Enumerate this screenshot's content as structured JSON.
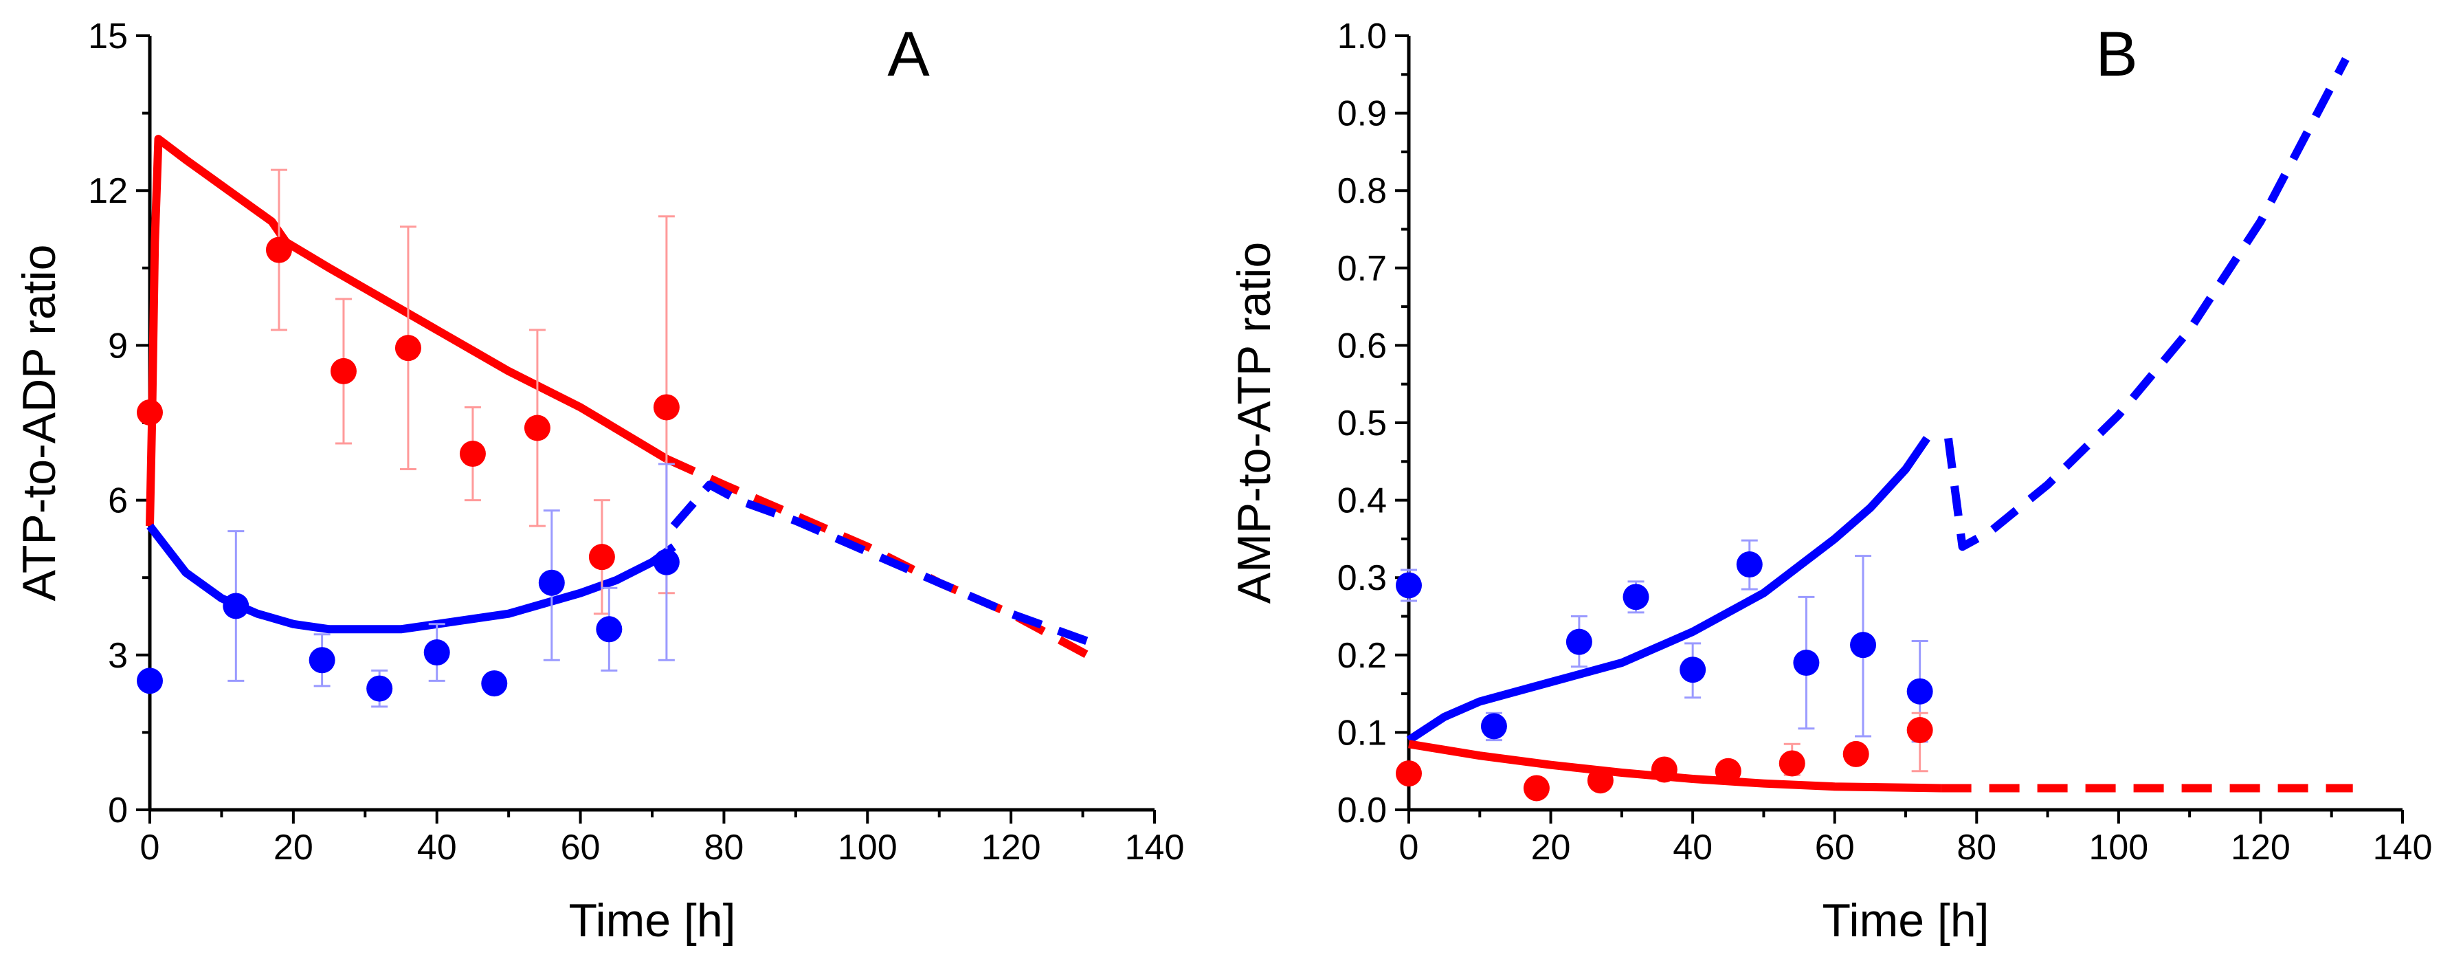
{
  "chart_data": [
    {
      "panel": "A",
      "type": "scatter",
      "title": "A",
      "xlabel": "Time [h]",
      "ylabel": "ATP-to-ADP ratio",
      "xlim": [
        0,
        140
      ],
      "ylim": [
        0,
        15
      ],
      "xticks": [
        0,
        20,
        40,
        60,
        80,
        100,
        120,
        140
      ],
      "yticks": [
        0,
        3,
        6,
        9,
        12,
        15
      ],
      "series": [
        {
          "name": "red data",
          "color": "#ff0000",
          "points": [
            {
              "x": 0,
              "y": 7.7
            },
            {
              "x": 18,
              "y": 10.85,
              "yerr": [
                9.3,
                12.4
              ]
            },
            {
              "x": 27,
              "y": 8.5,
              "yerr": [
                7.1,
                9.9
              ]
            },
            {
              "x": 36,
              "y": 8.95,
              "yerr": [
                6.6,
                11.3
              ]
            },
            {
              "x": 45,
              "y": 6.9,
              "yerr": [
                6.0,
                7.8
              ]
            },
            {
              "x": 54,
              "y": 7.4,
              "yerr": [
                5.5,
                9.3
              ]
            },
            {
              "x": 63,
              "y": 4.9,
              "yerr": [
                3.8,
                6.0
              ]
            },
            {
              "x": 72,
              "y": 7.8,
              "yerr": [
                4.2,
                11.5
              ]
            }
          ]
        },
        {
          "name": "blue data",
          "color": "#0000ff",
          "points": [
            {
              "x": 0,
              "y": 2.5
            },
            {
              "x": 12,
              "y": 3.95,
              "yerr": [
                2.5,
                5.4
              ]
            },
            {
              "x": 24,
              "y": 2.9,
              "yerr": [
                2.4,
                3.4
              ]
            },
            {
              "x": 32,
              "y": 2.35,
              "yerr": [
                2.0,
                2.7
              ]
            },
            {
              "x": 40,
              "y": 3.05,
              "yerr": [
                2.5,
                3.6
              ]
            },
            {
              "x": 48,
              "y": 2.45
            },
            {
              "x": 56,
              "y": 4.4,
              "yerr": [
                2.9,
                5.8
              ]
            },
            {
              "x": 64,
              "y": 3.5,
              "yerr": [
                2.7,
                4.3
              ]
            },
            {
              "x": 72,
              "y": 4.8,
              "yerr": [
                2.9,
                6.7
              ]
            }
          ]
        }
      ],
      "lines": [
        {
          "name": "red model",
          "color": "#ff0000",
          "style": "solid",
          "x": [
            0,
            0.3,
            0.7,
            1.2,
            5,
            10,
            15,
            17,
            19,
            25,
            30,
            40,
            50,
            60,
            72
          ],
          "y": [
            5.5,
            7.5,
            11,
            13,
            12.6,
            12.1,
            11.6,
            11.4,
            11.0,
            10.5,
            10.1,
            9.3,
            8.5,
            7.8,
            6.8
          ]
        },
        {
          "name": "red prediction",
          "color": "#ff0000",
          "style": "dashed",
          "x": [
            72,
            80,
            90,
            100,
            110,
            120,
            132
          ],
          "y": [
            6.8,
            6.3,
            5.7,
            5.1,
            4.4,
            3.8,
            2.9
          ]
        },
        {
          "name": "blue model",
          "color": "#0000ff",
          "style": "solid",
          "x": [
            0,
            5,
            10,
            15,
            20,
            25,
            30,
            35,
            40,
            50,
            60,
            65,
            70,
            73
          ],
          "y": [
            5.5,
            4.6,
            4.1,
            3.8,
            3.6,
            3.5,
            3.5,
            3.5,
            3.6,
            3.8,
            4.2,
            4.45,
            4.8,
            5.1
          ]
        },
        {
          "name": "blue prediction",
          "color": "#0000ff",
          "style": "dashed",
          "x": [
            73,
            78,
            82,
            90,
            100,
            110,
            120,
            132
          ],
          "y": [
            5.5,
            6.3,
            6.0,
            5.6,
            5.0,
            4.4,
            3.8,
            3.2
          ]
        }
      ]
    },
    {
      "panel": "B",
      "type": "scatter",
      "title": "B",
      "xlabel": "Time [h]",
      "ylabel": "AMP-to-ATP ratio",
      "xlim": [
        0,
        140
      ],
      "ylim": [
        0,
        1.0
      ],
      "xticks": [
        0,
        20,
        40,
        60,
        80,
        100,
        120,
        140
      ],
      "yticks": [
        0.0,
        0.1,
        0.2,
        0.3,
        0.4,
        0.5,
        0.6,
        0.7,
        0.8,
        0.9,
        1.0
      ],
      "series": [
        {
          "name": "blue data",
          "color": "#0000ff",
          "points": [
            {
              "x": 0,
              "y": 0.29,
              "yerr": [
                0.27,
                0.31
              ]
            },
            {
              "x": 12,
              "y": 0.108,
              "yerr": [
                0.09,
                0.125
              ]
            },
            {
              "x": 24,
              "y": 0.217,
              "yerr": [
                0.185,
                0.25
              ]
            },
            {
              "x": 32,
              "y": 0.275,
              "yerr": [
                0.255,
                0.295
              ]
            },
            {
              "x": 40,
              "y": 0.181,
              "yerr": [
                0.145,
                0.215
              ]
            },
            {
              "x": 48,
              "y": 0.317,
              "yerr": [
                0.285,
                0.348
              ]
            },
            {
              "x": 56,
              "y": 0.19,
              "yerr": [
                0.105,
                0.275
              ]
            },
            {
              "x": 64,
              "y": 0.213,
              "yerr": [
                0.095,
                0.328
              ]
            },
            {
              "x": 72,
              "y": 0.153,
              "yerr": [
                0.088,
                0.218
              ]
            }
          ]
        },
        {
          "name": "red data",
          "color": "#ff0000",
          "points": [
            {
              "x": 0,
              "y": 0.047
            },
            {
              "x": 18,
              "y": 0.028
            },
            {
              "x": 27,
              "y": 0.038
            },
            {
              "x": 36,
              "y": 0.052,
              "yerr": [
                0.04,
                0.064
              ]
            },
            {
              "x": 45,
              "y": 0.05
            },
            {
              "x": 54,
              "y": 0.06,
              "yerr": [
                0.045,
                0.085
              ]
            },
            {
              "x": 63,
              "y": 0.072
            },
            {
              "x": 72,
              "y": 0.103,
              "yerr": [
                0.05,
                0.125
              ]
            }
          ]
        }
      ],
      "lines": [
        {
          "name": "blue model",
          "color": "#0000ff",
          "style": "solid",
          "x": [
            0,
            5,
            10,
            20,
            30,
            40,
            50,
            60,
            65,
            70,
            73
          ],
          "y": [
            0.09,
            0.12,
            0.14,
            0.165,
            0.19,
            0.23,
            0.28,
            0.35,
            0.39,
            0.44,
            0.48
          ]
        },
        {
          "name": "blue prediction",
          "color": "#0000ff",
          "style": "dashed",
          "x": [
            76,
            78,
            82,
            90,
            100,
            110,
            120,
            132
          ],
          "y": [
            0.48,
            0.34,
            0.36,
            0.42,
            0.51,
            0.62,
            0.76,
            0.97
          ]
        },
        {
          "name": "red model",
          "color": "#ff0000",
          "style": "solid",
          "x": [
            0,
            10,
            20,
            30,
            40,
            50,
            60,
            75
          ],
          "y": [
            0.085,
            0.07,
            0.058,
            0.048,
            0.04,
            0.034,
            0.03,
            0.028
          ]
        },
        {
          "name": "red prediction",
          "color": "#ff0000",
          "style": "dashed",
          "x": [
            75,
            90,
            100,
            110,
            120,
            133
          ],
          "y": [
            0.028,
            0.028,
            0.028,
            0.028,
            0.028,
            0.028
          ]
        }
      ]
    }
  ]
}
